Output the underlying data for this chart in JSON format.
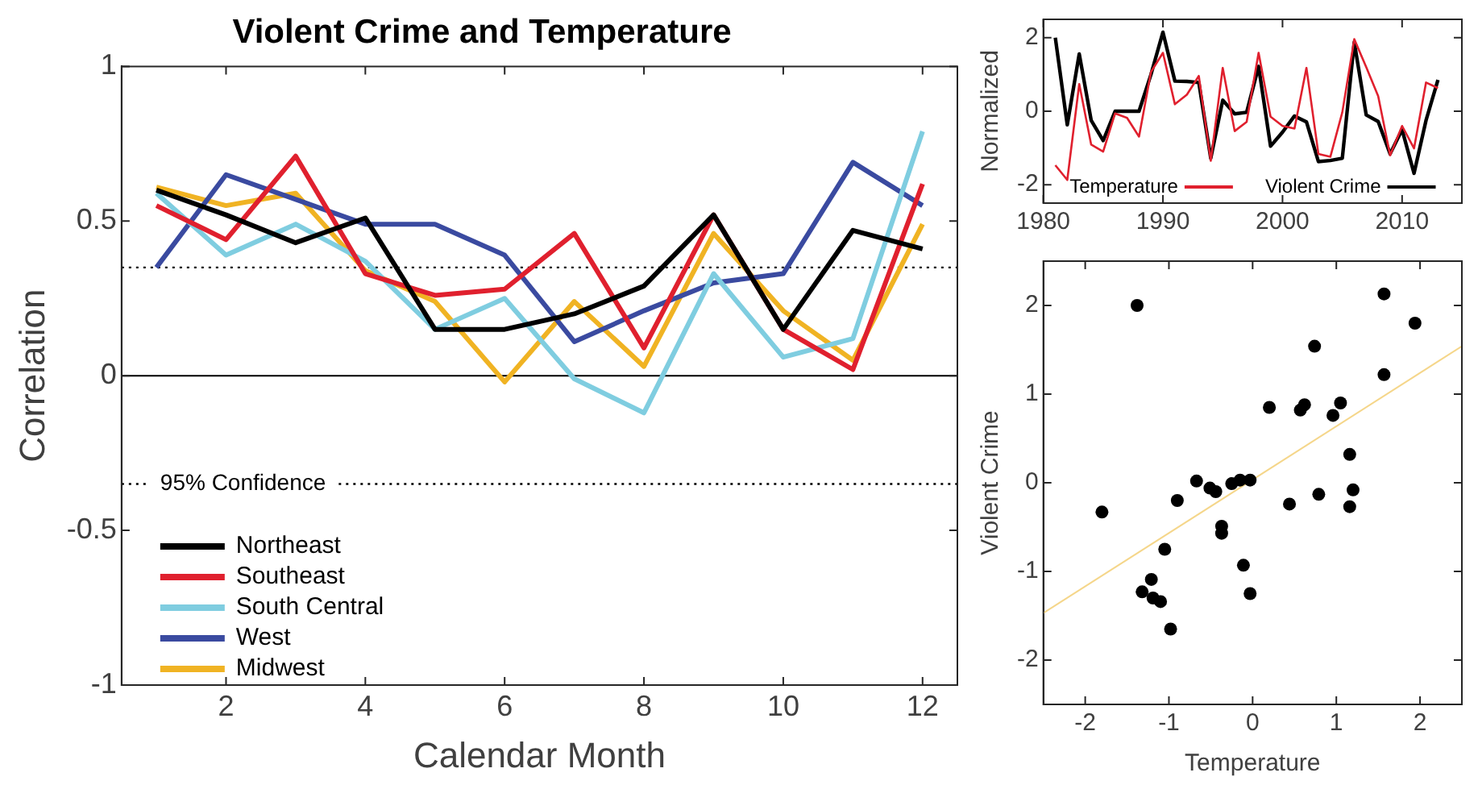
{
  "chart_data": [
    {
      "type": "line",
      "title": "Violent Crime and Temperature",
      "xlabel": "Calendar Month",
      "ylabel": "Correlation",
      "x": [
        1,
        2,
        3,
        4,
        5,
        6,
        7,
        8,
        9,
        10,
        11,
        12
      ],
      "xlim": [
        0.5,
        12.5
      ],
      "xticks": [
        2,
        4,
        6,
        8,
        10,
        12
      ],
      "ylim": [
        -1,
        1
      ],
      "yticks": [
        -1,
        -0.5,
        0,
        0.5,
        1
      ],
      "legend": "bottom left",
      "marker": "none",
      "series": [
        {
          "name": "Northeast",
          "color": "#000000",
          "values": [
            0.6,
            0.52,
            0.43,
            0.51,
            0.15,
            0.15,
            0.2,
            0.29,
            0.52,
            0.15,
            0.47,
            0.41
          ]
        },
        {
          "name": "Southeast",
          "color": "#e0202e",
          "values": [
            0.55,
            0.44,
            0.71,
            0.33,
            0.26,
            0.28,
            0.46,
            0.09,
            0.52,
            0.15,
            0.02,
            0.62
          ]
        },
        {
          "name": "South Central",
          "color": "#7fcde0",
          "values": [
            0.59,
            0.39,
            0.49,
            0.37,
            0.15,
            0.25,
            -0.01,
            -0.12,
            0.33,
            0.06,
            0.12,
            0.79
          ]
        },
        {
          "name": "West",
          "color": "#3a4aa0",
          "values": [
            0.35,
            0.65,
            0.57,
            0.49,
            0.49,
            0.39,
            0.11,
            0.21,
            0.3,
            0.33,
            0.69,
            0.55
          ]
        },
        {
          "name": "Midwest",
          "color": "#f0b323",
          "values": [
            0.61,
            0.55,
            0.59,
            0.34,
            0.24,
            -0.02,
            0.24,
            0.03,
            0.46,
            0.21,
            0.05,
            0.49
          ]
        }
      ],
      "ref_lines": [
        {
          "axis": "y",
          "value": 0,
          "color": "#000000",
          "line_style": "solid"
        },
        {
          "axis": "y",
          "value": 0.35,
          "color": "#000000",
          "line_style": "dotted"
        },
        {
          "axis": "y",
          "value": -0.35,
          "label": "95% Confidence",
          "color": "#000000",
          "line_style": "dotted"
        }
      ]
    },
    {
      "type": "line",
      "ylabel": "Normalized",
      "x": [
        1981,
        1982,
        1983,
        1984,
        1985,
        1986,
        1987,
        1988,
        1989,
        1990,
        1991,
        1992,
        1993,
        1994,
        1995,
        1996,
        1997,
        1998,
        1999,
        2000,
        2001,
        2002,
        2003,
        2004,
        2005,
        2006,
        2007,
        2008,
        2009,
        2010,
        2011,
        2012,
        2013
      ],
      "xlim": [
        1980,
        2015
      ],
      "xticks": [
        1980,
        1990,
        2000,
        2010
      ],
      "ylim": [
        -2.5,
        2.5
      ],
      "yticks": [
        -2,
        0,
        2
      ],
      "legend": "bottom",
      "marker": "none",
      "series": [
        {
          "name": "Temperature",
          "color": "#e0202e",
          "values": [
            -1.47,
            -1.87,
            0.74,
            -0.91,
            -1.1,
            -0.06,
            -0.18,
            -0.69,
            1.07,
            1.59,
            0.19,
            0.45,
            0.96,
            -1.35,
            1.18,
            -0.54,
            -0.29,
            1.59,
            -0.15,
            -0.4,
            -0.47,
            1.18,
            -1.16,
            -1.24,
            -0.03,
            1.96,
            1.2,
            0.41,
            -1.2,
            -0.4,
            -1.01,
            0.78,
            0.63
          ]
        },
        {
          "name": "Violent Crime",
          "color": "#000000",
          "values": [
            2.0,
            -0.37,
            1.56,
            -0.25,
            -0.8,
            0,
            0,
            0,
            1.0,
            2.15,
            0.82,
            0.81,
            0.78,
            -1.28,
            0.3,
            -0.07,
            -0.03,
            1.22,
            -0.95,
            -0.57,
            -0.13,
            -0.29,
            -1.37,
            -1.34,
            -1.28,
            1.88,
            -0.1,
            -0.28,
            -1.16,
            -0.5,
            -1.69,
            -0.25,
            0.85
          ]
        }
      ]
    },
    {
      "type": "scatter",
      "xlabel": "Temperature",
      "ylabel": "Violent Crime",
      "xlim": [
        -2.5,
        2.5
      ],
      "xticks": [
        -2,
        -1,
        0,
        1,
        2
      ],
      "ylim": [
        -2.5,
        2.5
      ],
      "yticks": [
        -2,
        -1,
        0,
        1,
        2
      ],
      "series": [
        {
          "marker": "circle",
          "color": "#000000",
          "x": [
            -1.38,
            -1.8,
            -0.67,
            -0.9,
            -0.51,
            -0.44,
            -0.25,
            -0.15,
            -0.03,
            -0.37,
            -0.37,
            -0.11,
            -0.03,
            -1.05,
            -1.21,
            -1.32,
            -1.19,
            -1.1,
            -0.98,
            0.2,
            0.57,
            0.62,
            0.74,
            0.96,
            1.05,
            1.16,
            1.2,
            1.16,
            0.79,
            0.44,
            1.57,
            1.57,
            1.94
          ],
          "values": [
            2.0,
            -0.33,
            0.02,
            -0.2,
            -0.06,
            -0.1,
            -0.01,
            0.03,
            0.03,
            -0.49,
            -0.57,
            -0.93,
            -1.25,
            -0.75,
            -1.09,
            -1.23,
            -1.3,
            -1.34,
            -1.65,
            0.85,
            0.82,
            0.88,
            1.54,
            0.76,
            0.9,
            0.32,
            -0.08,
            -0.27,
            -0.13,
            -0.24,
            2.13,
            1.22,
            1.8
          ]
        },
        {
          "type": "line",
          "marker": "none",
          "color": "#f5d68a",
          "x": [
            -2.5,
            2.5
          ],
          "values": [
            -1.47,
            1.54
          ]
        }
      ]
    }
  ]
}
